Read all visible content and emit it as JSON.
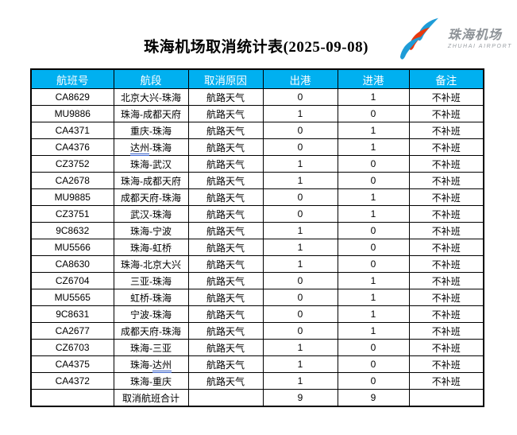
{
  "title": "珠海机场取消统计表(2025-09-08)",
  "logo": {
    "cn": "珠海机场",
    "en": "ZHUHAI AIRPORT",
    "colors": {
      "swoosh_blue": "#1e9cd7",
      "swoosh_red": "#e8380d",
      "text_gray": "#8e9398"
    }
  },
  "table": {
    "header_bg": "#00b0f0",
    "header_text_color": "#ffffff",
    "grammar_underline_color": "#3a62c8",
    "columns": [
      "航班号",
      "航段",
      "取消原因",
      "出港",
      "进港",
      "备注"
    ],
    "rows": [
      {
        "flight": "CA8629",
        "segment": "北京大兴-珠海",
        "reason": "航路天气",
        "dep": "0",
        "arr": "1",
        "note": "不补班"
      },
      {
        "flight": "MU9886",
        "segment": "珠海-成都天府",
        "reason": "航路天气",
        "dep": "1",
        "arr": "0",
        "note": "不补班"
      },
      {
        "flight": "CA4371",
        "segment": "重庆-珠海",
        "reason": "航路天气",
        "dep": "0",
        "arr": "1",
        "note": "不补班"
      },
      {
        "flight": "CA4376",
        "segment": "达州-珠海",
        "marked": "达州",
        "reason": "航路天气",
        "dep": "0",
        "arr": "1",
        "note": "不补班"
      },
      {
        "flight": "CZ3752",
        "segment": "珠海-武汉",
        "reason": "航路天气",
        "dep": "1",
        "arr": "0",
        "note": "不补班"
      },
      {
        "flight": "CA2678",
        "segment": "珠海-成都天府",
        "reason": "航路天气",
        "dep": "1",
        "arr": "0",
        "note": "不补班"
      },
      {
        "flight": "MU9885",
        "segment": "成都天府-珠海",
        "reason": "航路天气",
        "dep": "0",
        "arr": "1",
        "note": "不补班"
      },
      {
        "flight": "CZ3751",
        "segment": "武汉-珠海",
        "reason": "航路天气",
        "dep": "0",
        "arr": "1",
        "note": "不补班"
      },
      {
        "flight": "9C8632",
        "segment": "珠海-宁波",
        "reason": "航路天气",
        "dep": "1",
        "arr": "0",
        "note": "不补班"
      },
      {
        "flight": "MU5566",
        "segment": "珠海-虹桥",
        "reason": "航路天气",
        "dep": "1",
        "arr": "0",
        "note": "不补班"
      },
      {
        "flight": "CA8630",
        "segment": "珠海-北京大兴",
        "reason": "航路天气",
        "dep": "1",
        "arr": "0",
        "note": "不补班"
      },
      {
        "flight": "CZ6704",
        "segment": "三亚-珠海",
        "reason": "航路天气",
        "dep": "0",
        "arr": "1",
        "note": "不补班"
      },
      {
        "flight": "MU5565",
        "segment": "虹桥-珠海",
        "reason": "航路天气",
        "dep": "0",
        "arr": "1",
        "note": "不补班"
      },
      {
        "flight": "9C8631",
        "segment": "宁波-珠海",
        "reason": "航路天气",
        "dep": "0",
        "arr": "1",
        "note": "不补班"
      },
      {
        "flight": "CA2677",
        "segment": "成都天府-珠海",
        "reason": "航路天气",
        "dep": "0",
        "arr": "1",
        "note": "不补班"
      },
      {
        "flight": "CZ6703",
        "segment": "珠海-三亚",
        "reason": "航路天气",
        "dep": "1",
        "arr": "0",
        "note": "不补班"
      },
      {
        "flight": "CA4375",
        "segment": "珠海-达州",
        "marked": "达州",
        "reason": "航路天气",
        "dep": "1",
        "arr": "0",
        "note": "不补班"
      },
      {
        "flight": "CA4372",
        "segment": "珠海-重庆",
        "reason": "航路天气",
        "dep": "1",
        "arr": "0",
        "note": "不补班"
      }
    ],
    "total_row": {
      "flight": "",
      "label": "取消航班合计",
      "reason": "",
      "dep": "9",
      "arr": "9",
      "note": ""
    }
  }
}
